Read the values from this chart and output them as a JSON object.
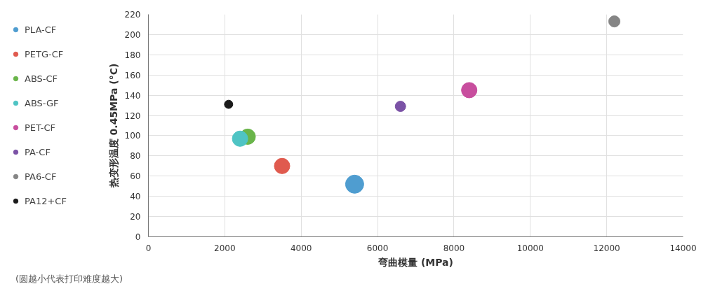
{
  "chart_data": {
    "type": "bubble",
    "xlabel": "弯曲模量 (MPa)",
    "ylabel": "热变形温度 0.45MPa (°C)",
    "annotations": [
      "(圆越小代表打印难度越大)"
    ],
    "xlim": [
      0,
      14000
    ],
    "xticks": [
      0,
      2000,
      4000,
      6000,
      8000,
      10000,
      12000,
      14000
    ],
    "ylim": [
      0,
      220
    ],
    "yticks": [
      0,
      20,
      40,
      60,
      80,
      100,
      120,
      140,
      160,
      180,
      200,
      220
    ],
    "grid": true,
    "legend": "left",
    "series": [
      {
        "name": "PLA-CF",
        "color": "#4f9dd0",
        "x": [
          5400
        ],
        "values": [
          52
        ],
        "sizes": [
          1
        ]
      },
      {
        "name": "PETG-CF",
        "color": "#e05a4e",
        "x": [
          3500
        ],
        "values": [
          70
        ],
        "sizes": [
          0.72
        ]
      },
      {
        "name": "ABS-CF",
        "color": "#6ab54a",
        "x": [
          2600
        ],
        "values": [
          99
        ],
        "sizes": [
          0.72
        ]
      },
      {
        "name": "ABS-GF",
        "color": "#4fc4c4",
        "x": [
          2400
        ],
        "values": [
          97
        ],
        "sizes": [
          0.72
        ]
      },
      {
        "name": "PET-CF",
        "color": "#c84e9e",
        "x": [
          8400
        ],
        "values": [
          145
        ],
        "sizes": [
          0.72
        ]
      },
      {
        "name": "PA-CF",
        "color": "#7b52a6",
        "x": [
          6600
        ],
        "values": [
          129
        ],
        "sizes": [
          0.33
        ]
      },
      {
        "name": "PA6-CF",
        "color": "#858585",
        "x": [
          12200
        ],
        "values": [
          213
        ],
        "sizes": [
          0.38
        ]
      },
      {
        "name": "PA12+CF",
        "color": "#1a1a1a",
        "x": [
          2100
        ],
        "values": [
          131
        ],
        "sizes": [
          0.21
        ]
      }
    ]
  }
}
